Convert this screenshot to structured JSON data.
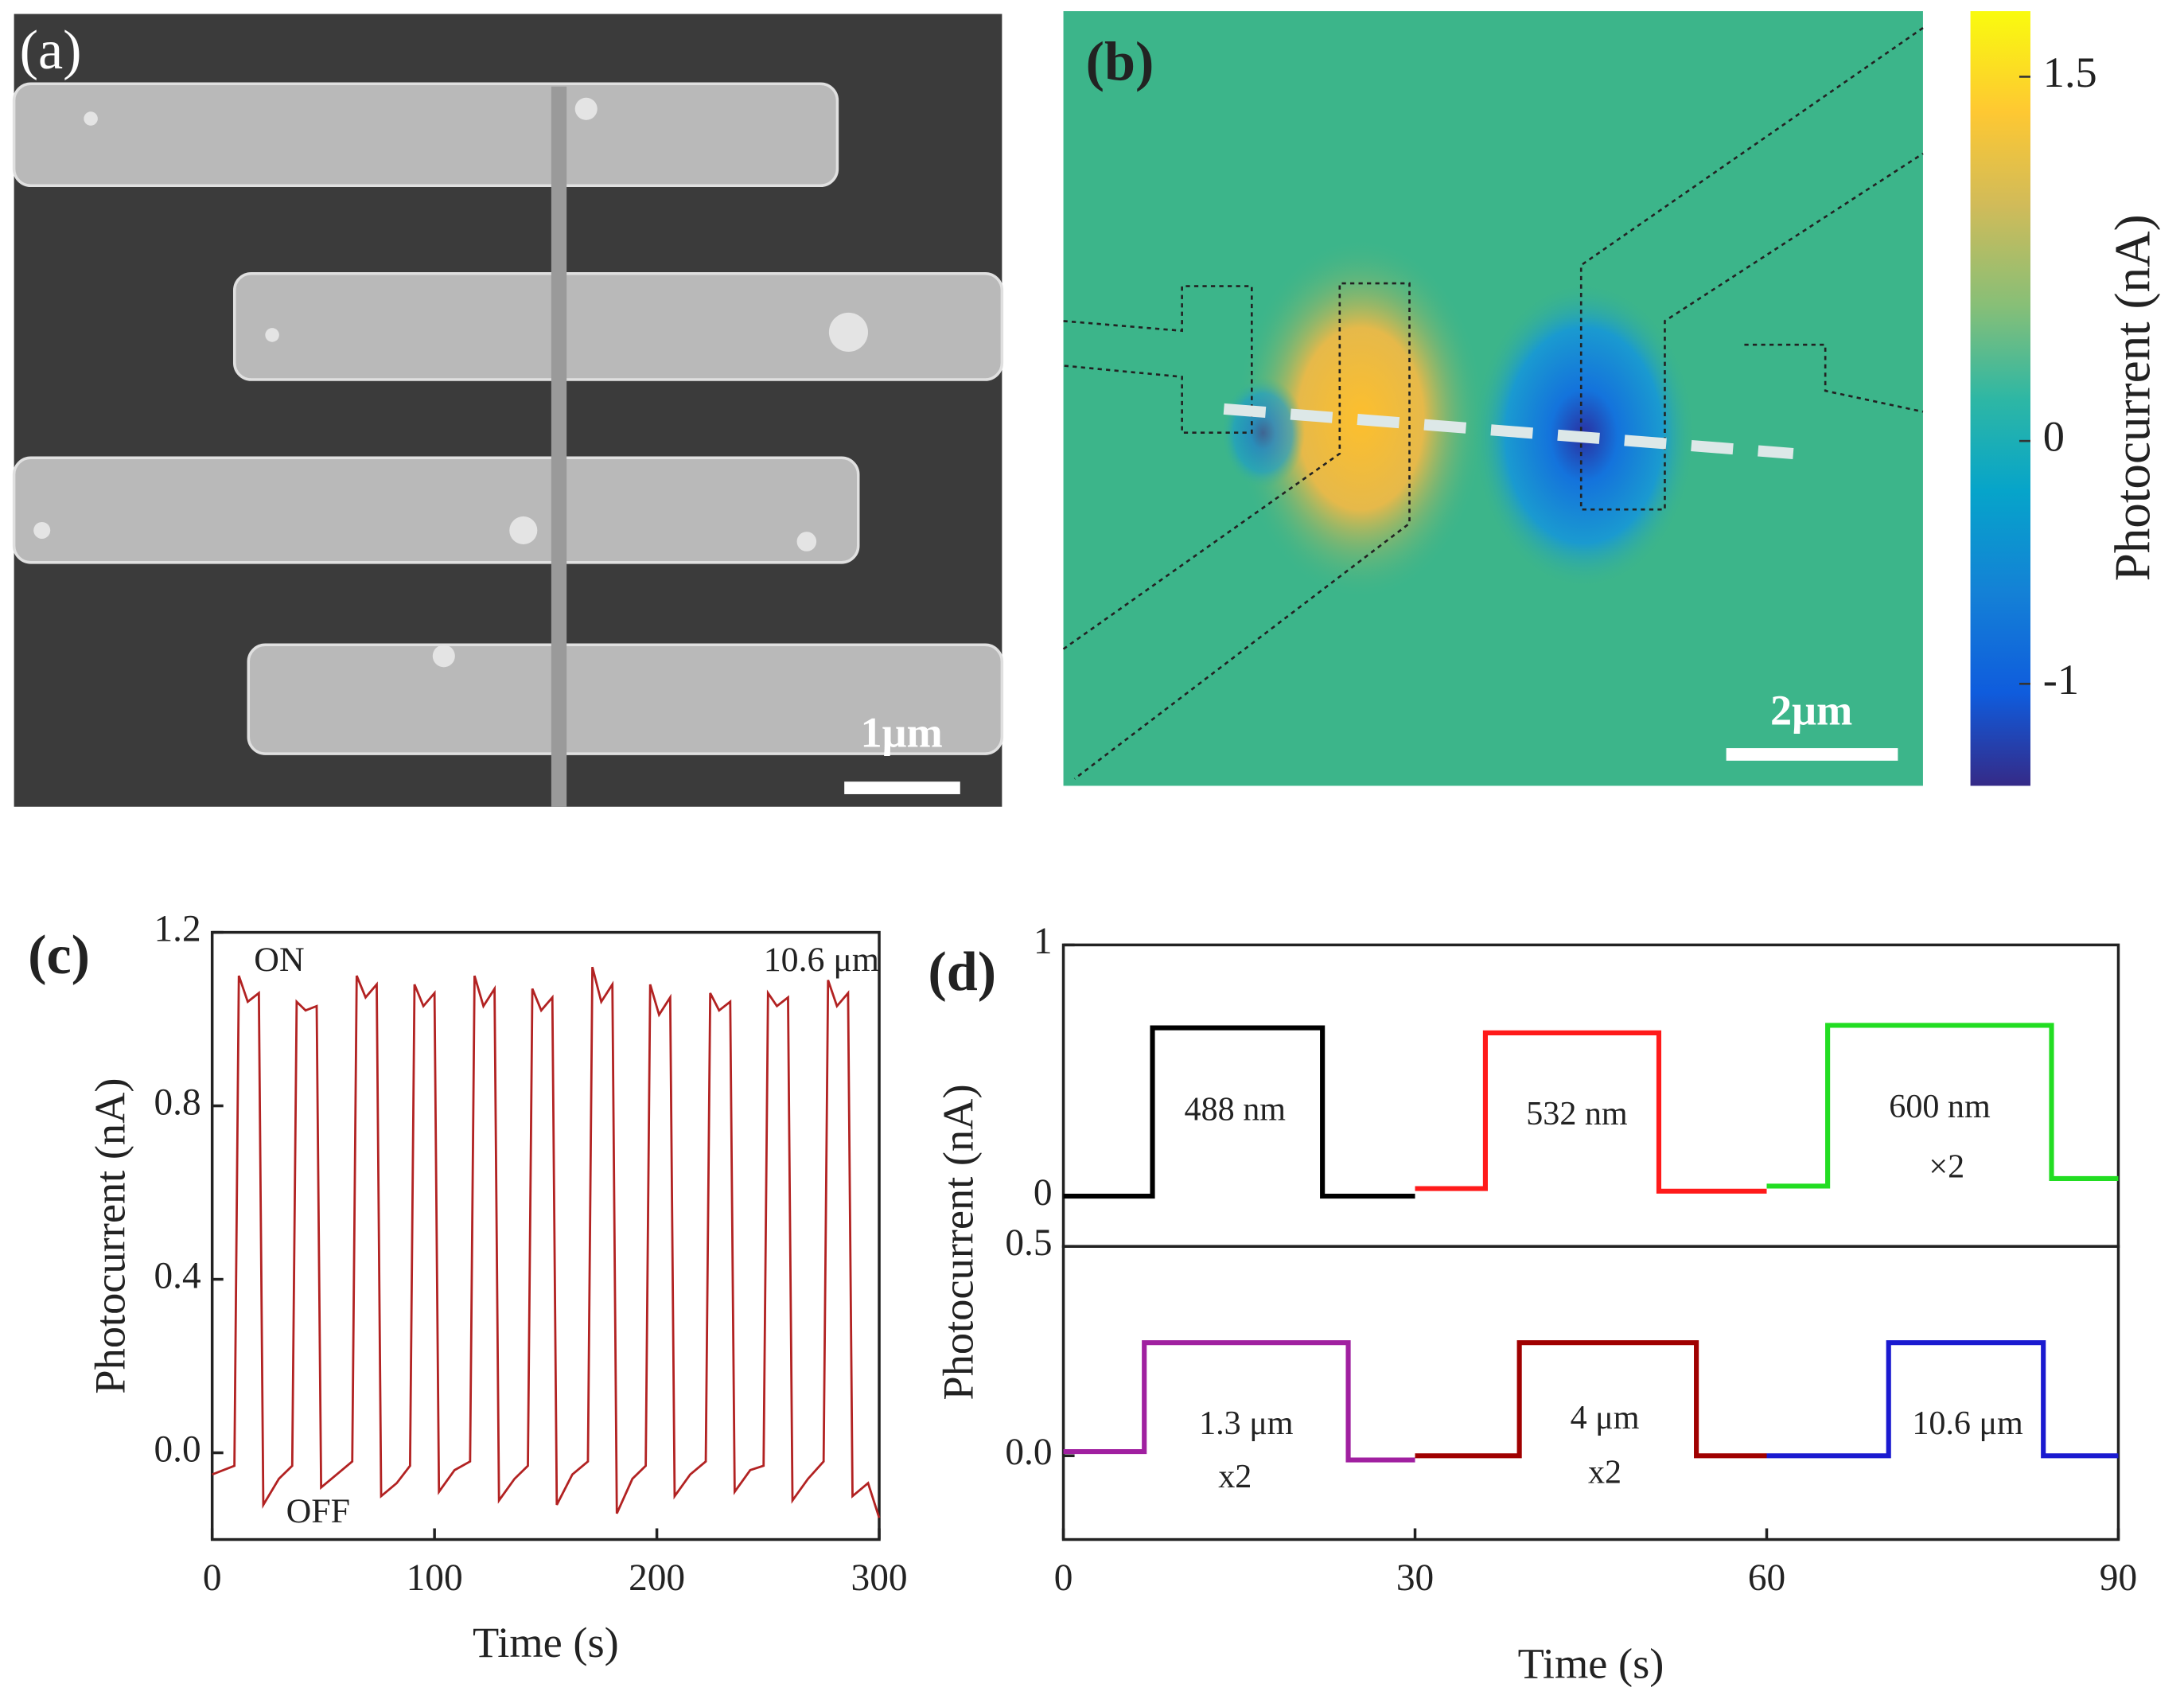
{
  "image": {
    "label": "(a)",
    "scale_bar": "1μm"
  },
  "chart_data": [
    {
      "type": "heatmap",
      "label": "(b)",
      "scale_bar": "2μm",
      "colorbar_label": "Photocurrent (nA)",
      "clim": [
        -1.42,
        1.77
      ],
      "cticks": [
        1.5,
        0,
        -1
      ]
    },
    {
      "type": "line",
      "label": "(c)",
      "xlabel": "Time (s)",
      "ylabel": "Photocurrent (nA)",
      "xlim": [
        0,
        300
      ],
      "xticks": [
        0,
        100,
        200,
        300
      ],
      "ylim": [
        -0.2,
        1.2
      ],
      "yticks": [
        {
          "value": 0,
          "label": "0.0"
        },
        0.4,
        0.8,
        1.2
      ],
      "annotations": [
        "ON",
        "OFF",
        "10.6 μm"
      ],
      "series": [
        {
          "color": "#b22222",
          "x": [
            0,
            10,
            12,
            16,
            21,
            23,
            30,
            36,
            38,
            42,
            47,
            49,
            56,
            63,
            65,
            69,
            74,
            76,
            83,
            89,
            91,
            95,
            100,
            102,
            109,
            116,
            118,
            122,
            127,
            129,
            136,
            142,
            144,
            148,
            153,
            155,
            162,
            169,
            171,
            175,
            180,
            182,
            189,
            195,
            197,
            201,
            206,
            208,
            215,
            222,
            224,
            228,
            233,
            235,
            242,
            248,
            250,
            254,
            259,
            261,
            268,
            275,
            277,
            281,
            286,
            288,
            295,
            300
          ],
          "values": [
            -0.05,
            -0.03,
            1.1,
            1.04,
            1.06,
            -0.12,
            -0.06,
            -0.03,
            1.04,
            1.02,
            1.03,
            -0.08,
            -0.05,
            -0.02,
            1.1,
            1.05,
            1.08,
            -0.1,
            -0.07,
            -0.03,
            1.08,
            1.03,
            1.06,
            -0.09,
            -0.04,
            -0.02,
            1.1,
            1.03,
            1.07,
            -0.11,
            -0.06,
            -0.03,
            1.07,
            1.02,
            1.05,
            -0.12,
            -0.05,
            -0.02,
            1.12,
            1.04,
            1.08,
            -0.14,
            -0.06,
            -0.03,
            1.08,
            1.01,
            1.05,
            -0.1,
            -0.05,
            -0.02,
            1.06,
            1.02,
            1.04,
            -0.09,
            -0.04,
            -0.03,
            1.06,
            1.03,
            1.05,
            -0.11,
            -0.06,
            -0.02,
            1.09,
            1.03,
            1.06,
            -0.1,
            -0.07,
            -0.15
          ]
        }
      ]
    },
    {
      "type": "step-panels",
      "label": "(d)",
      "xlabel": "Time (s)",
      "ylabel": "Photocurrent (nA)",
      "xlim": [
        0,
        90
      ],
      "xticks": [
        0,
        30,
        60,
        90
      ],
      "annotations": [
        "488 nm",
        "532 nm",
        "600 nm",
        "×2",
        "1.3 μm",
        "x2",
        "4 μm",
        "x2",
        "10.6 μm"
      ],
      "panels": [
        {
          "ylim": [
            -0.2,
            1
          ],
          "yticks": [
            0,
            1
          ],
          "series": [
            {
              "color": "#000000",
              "x": [
                0,
                7.6,
                7.6,
                22.1,
                22.1,
                30
              ],
              "values": [
                0,
                0,
                0.67,
                0.67,
                0,
                0
              ]
            },
            {
              "color": "#ff1a1a",
              "x": [
                30,
                36,
                36,
                50.8,
                50.8,
                60
              ],
              "values": [
                0.03,
                0.03,
                0.65,
                0.65,
                0.02,
                0.02
              ]
            },
            {
              "color": "#22dd22",
              "x": [
                60,
                65.2,
                65.2,
                84.3,
                84.3,
                90
              ],
              "values": [
                0.04,
                0.04,
                0.68,
                0.68,
                0.07,
                0.07
              ]
            }
          ]
        },
        {
          "ylim": [
            -0.2,
            0.5
          ],
          "yticks": [
            {
              "value": 0,
              "label": "0.0"
            },
            0.5
          ],
          "series": [
            {
              "color": "#a020a0",
              "x": [
                0,
                6.9,
                6.9,
                24.3,
                24.3,
                30
              ],
              "values": [
                0.01,
                0.01,
                0.27,
                0.27,
                -0.01,
                -0.01
              ]
            },
            {
              "color": "#a00000",
              "x": [
                30,
                38.9,
                38.9,
                54,
                54,
                60
              ],
              "values": [
                0,
                0,
                0.27,
                0.27,
                0,
                0
              ]
            },
            {
              "color": "#1a1ad0",
              "x": [
                60,
                70.4,
                70.4,
                83.6,
                83.6,
                90
              ],
              "values": [
                0,
                0,
                0.27,
                0.27,
                0,
                0
              ]
            }
          ]
        }
      ]
    }
  ]
}
